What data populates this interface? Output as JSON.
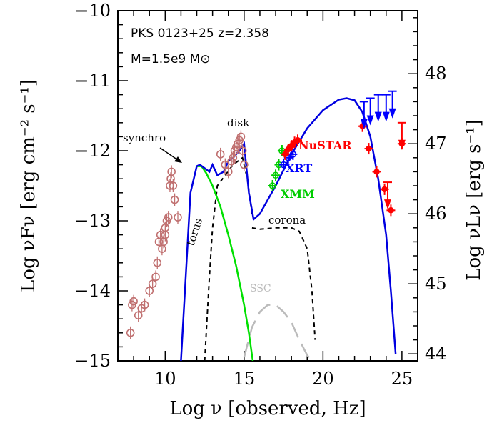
{
  "chart_data": {
    "type": "scatter",
    "title": "PKS 0123+25  z=2.358",
    "subtitle": "M=1.5e9 M⊙",
    "xlabel": "Log ν  [observed, Hz]",
    "ylabel": "Log νFν  [erg cm⁻² s⁻¹]",
    "ylabel_right": "Log νLν  [erg s⁻¹]",
    "xlim": [
      7,
      26
    ],
    "ylim": [
      -15,
      -10
    ],
    "y2lim": [
      43.9,
      48.9
    ],
    "x_ticks": [
      "10",
      "15",
      "20",
      "25"
    ],
    "y_ticks": [
      "−15",
      "−14",
      "−13",
      "−12",
      "−11",
      "−10"
    ],
    "y2_ticks": [
      "44",
      "45",
      "46",
      "47",
      "48"
    ],
    "grid": false,
    "annotations": {
      "synchro": "synchro",
      "disk": "disk",
      "torus": "torus",
      "corona": "corona",
      "ssc": "SSC",
      "nustar": "NuSTAR",
      "xrt": "XRT",
      "xmm": "XMM"
    },
    "colors": {
      "archival": "#c07070",
      "total_model": "#0000e0",
      "synchrotron": "#00e000",
      "components": "#000000",
      "ssc": "#bbbbbb",
      "nustar": "#ff0000",
      "xrt": "#0000ff",
      "xmm": "#00cc00",
      "fermi": "#ff0000"
    },
    "series": [
      {
        "x": [
          11.0,
          11.6,
          12.0,
          12.2,
          12.5,
          12.8,
          13.0,
          13.3,
          13.7,
          14.0,
          14.3,
          14.7,
          15.0,
          15.3,
          15.6,
          16.0,
          17.0,
          18.0,
          19.0,
          20.0,
          21.0,
          21.5,
          22.0,
          22.5,
          23.0,
          23.5,
          24.0,
          24.3,
          24.6
        ],
        "y": [
          -15.0,
          -12.6,
          -12.22,
          -12.2,
          -12.25,
          -12.3,
          -12.2,
          -12.35,
          -12.3,
          -12.15,
          -12.1,
          -12.0,
          -11.9,
          -12.6,
          -12.98,
          -12.9,
          -12.5,
          -12.05,
          -11.68,
          -11.42,
          -11.27,
          -11.25,
          -11.28,
          -11.45,
          -11.8,
          -12.4,
          -13.2,
          -14.0,
          -14.9
        ]
      },
      {
        "x": [
          12.0,
          12.3,
          12.6,
          13.0,
          13.5,
          14.0,
          14.5,
          15.0,
          15.3,
          15.55
        ],
        "y": [
          -12.22,
          -12.22,
          -12.32,
          -12.5,
          -12.8,
          -13.2,
          -13.65,
          -14.2,
          -14.6,
          -15.0
        ]
      },
      {
        "x": [
          12.5,
          12.8,
          13.0,
          13.3,
          13.8,
          14.3,
          14.6,
          14.9,
          15.2,
          15.5
        ],
        "y": [
          -15.0,
          -13.8,
          -13.1,
          -12.5,
          -12.35,
          -12.2,
          -12.15,
          -12.1,
          -12.4,
          -12.9
        ]
      },
      {
        "x": [
          15.5,
          16.0,
          17.0,
          18.0,
          18.5,
          19.0,
          19.3,
          19.5
        ],
        "y": [
          -13.1,
          -13.12,
          -13.1,
          -13.1,
          -13.15,
          -13.4,
          -14.0,
          -14.7
        ]
      },
      {
        "x": [
          15.0,
          15.5,
          16.0,
          16.5,
          17.0,
          17.5,
          18.0,
          18.5,
          19.0,
          19.3
        ],
        "y": [
          -14.95,
          -14.52,
          -14.3,
          -14.2,
          -14.2,
          -14.3,
          -14.45,
          -14.7,
          -14.92,
          -15.0
        ]
      },
      {
        "x": [
          7.8,
          7.9,
          8.0,
          8.3,
          8.5,
          8.7,
          9.0,
          9.2,
          9.4,
          9.5,
          9.6,
          9.7,
          9.8,
          9.9,
          10.0,
          10.0,
          10.1,
          10.2,
          10.3,
          10.35,
          10.4,
          10.5,
          10.6,
          10.8,
          13.5,
          13.8,
          14.0,
          14.2,
          14.3,
          14.4,
          14.5,
          14.6,
          14.7,
          14.8,
          14.9,
          15.0
        ],
        "y": [
          -14.6,
          -14.2,
          -14.15,
          -14.35,
          -14.25,
          -14.2,
          -14.0,
          -13.9,
          -13.8,
          -13.6,
          -13.3,
          -13.2,
          -13.4,
          -13.3,
          -13.1,
          -13.2,
          -13.0,
          -12.95,
          -12.5,
          -12.4,
          -12.3,
          -12.5,
          -12.7,
          -12.95,
          -12.05,
          -12.2,
          -12.3,
          -12.15,
          -12.1,
          -12.0,
          -11.95,
          -11.9,
          -11.85,
          -11.8,
          -12.0,
          -12.2
        ]
      },
      {
        "x": [
          17.6,
          17.8,
          18.0,
          18.2,
          18.4
        ],
        "y": [
          -12.05,
          -11.98,
          -11.93,
          -11.88,
          -11.85
        ]
      },
      {
        "x": [
          17.5,
          17.8,
          18.1
        ],
        "y": [
          -12.2,
          -12.1,
          -12.05
        ]
      },
      {
        "x": [
          16.8,
          17.0,
          17.2,
          17.4
        ],
        "y": [
          -12.5,
          -12.35,
          -12.2,
          -12.0
        ]
      },
      {
        "x": [
          22.5,
          22.9,
          23.4,
          23.9,
          24.3,
          25.0
        ],
        "y": [
          -11.65,
          -11.97,
          -12.3,
          -12.55,
          -12.85,
          -11.9
        ]
      }
    ],
    "upper_limits": [
      {
        "x": [
          22.6,
          23.0,
          23.5,
          24.0,
          24.4
        ],
        "y": [
          -11.3,
          -11.25,
          -11.2,
          -11.2,
          -11.15
        ]
      },
      {
        "x": [
          24.1,
          25.0
        ],
        "y": [
          -12.45,
          -11.6
        ]
      }
    ]
  }
}
